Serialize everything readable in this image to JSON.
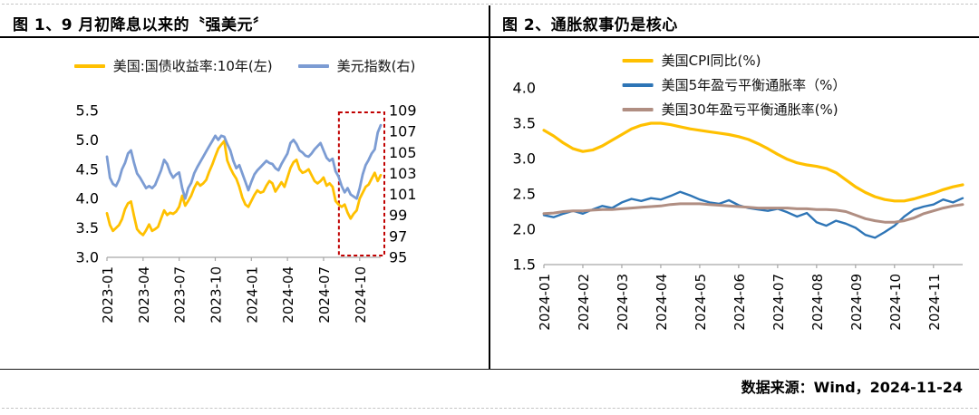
{
  "header": {
    "fig1_title": "图 1、9 月初降息以来的〝强美元〞",
    "fig2_title": "图 2、通胀叙事仍是核心"
  },
  "footer": {
    "source": "数据来源：Wind，2024-11-24"
  },
  "colors": {
    "gold": "#FFC000",
    "light_blue": "#7C9CD3",
    "dark_blue": "#2E75B6",
    "brown": "#B08E82",
    "highlight_red": "#C00000",
    "axis_gray": "#A6A6A6"
  },
  "chart_data": [
    {
      "type": "line",
      "title": "图 1、9 月初降息以来的〝强美元〞",
      "xlabel": "",
      "ylabel_left": "",
      "ylabel_right": "",
      "legend_position": "top-center-horizontal",
      "grid": false,
      "left_axis": {
        "min": 3.0,
        "max": 5.5,
        "ticks": [
          {
            "v": 3.0,
            "label": "3.0"
          },
          {
            "v": 3.5,
            "label": "3.5"
          },
          {
            "v": 4.0,
            "label": "4.0"
          },
          {
            "v": 4.5,
            "label": "4.5"
          },
          {
            "v": 5.0,
            "label": "5.0"
          },
          {
            "v": 5.5,
            "label": "5.5"
          }
        ]
      },
      "right_axis": {
        "min": 95,
        "max": 109,
        "ticks": [
          {
            "v": 95,
            "label": "95"
          },
          {
            "v": 97,
            "label": "97"
          },
          {
            "v": 99,
            "label": "99"
          },
          {
            "v": 101,
            "label": "101"
          },
          {
            "v": 103,
            "label": "103"
          },
          {
            "v": 105,
            "label": "105"
          },
          {
            "v": 107,
            "label": "107"
          },
          {
            "v": 109,
            "label": "109"
          }
        ]
      },
      "x_ticks": [
        {
          "label": "2023-01",
          "index": 0
        },
        {
          "label": "2023-04",
          "index": 12
        },
        {
          "label": "2023-07",
          "index": 24
        },
        {
          "label": "2023-10",
          "index": 36
        },
        {
          "label": "2024-01",
          "index": 48
        },
        {
          "label": "2024-04",
          "index": 60
        },
        {
          "label": "2024-07",
          "index": 72
        },
        {
          "label": "2024-10",
          "index": 84
        }
      ],
      "highlight": {
        "start_index": 78,
        "end_index": 91,
        "color": "#C00000"
      },
      "series": [
        {
          "name": "美国:国债收益率:10年(左)",
          "axis": "left",
          "color": "#FFC000",
          "width": 2.8,
          "values": [
            3.75,
            3.55,
            3.45,
            3.5,
            3.55,
            3.65,
            3.82,
            3.92,
            3.95,
            3.7,
            3.48,
            3.42,
            3.38,
            3.46,
            3.56,
            3.45,
            3.48,
            3.52,
            3.66,
            3.8,
            3.72,
            3.76,
            3.74,
            3.78,
            3.86,
            4.05,
            3.88,
            3.96,
            4.05,
            4.18,
            4.28,
            4.22,
            4.26,
            4.32,
            4.46,
            4.58,
            4.72,
            4.85,
            4.92,
            4.98,
            4.65,
            4.52,
            4.42,
            4.34,
            4.2,
            4.02,
            3.9,
            3.86,
            3.96,
            4.06,
            4.14,
            4.1,
            4.12,
            4.22,
            4.3,
            4.26,
            4.12,
            4.2,
            4.28,
            4.2,
            4.36,
            4.52,
            4.62,
            4.66,
            4.5,
            4.44,
            4.46,
            4.5,
            4.4,
            4.3,
            4.26,
            4.3,
            4.36,
            4.22,
            4.26,
            4.2,
            3.96,
            3.9,
            3.86,
            3.9,
            3.76,
            3.66,
            3.74,
            3.8,
            4.0,
            4.1,
            4.2,
            4.24,
            4.34,
            4.44,
            4.3,
            4.4
          ]
        },
        {
          "name": "美元指数(右)",
          "axis": "right",
          "color": "#7C9CD3",
          "width": 2.8,
          "values": [
            104.6,
            102.6,
            102.0,
            101.8,
            102.4,
            103.4,
            104.0,
            104.9,
            105.2,
            104.0,
            103.0,
            102.6,
            102.1,
            101.6,
            101.8,
            101.6,
            101.9,
            102.6,
            103.3,
            104.3,
            103.9,
            103.1,
            102.6,
            102.9,
            103.1,
            101.6,
            100.6,
            101.6,
            102.1,
            103.0,
            103.6,
            104.1,
            104.6,
            105.1,
            105.6,
            106.1,
            106.6,
            106.2,
            106.6,
            106.5,
            105.8,
            105.2,
            104.2,
            103.5,
            103.8,
            103.0,
            102.2,
            101.4,
            102.2,
            102.9,
            103.3,
            103.6,
            103.9,
            104.2,
            104.0,
            103.9,
            103.5,
            103.3,
            103.9,
            104.4,
            104.9,
            105.9,
            106.2,
            105.8,
            105.2,
            105.0,
            104.7,
            104.6,
            104.9,
            105.3,
            105.6,
            105.9,
            105.2,
            104.5,
            104.2,
            104.4,
            103.2,
            102.7,
            101.8,
            101.2,
            101.6,
            101.0,
            100.8,
            100.6,
            101.6,
            102.9,
            103.8,
            104.3,
            104.9,
            105.3,
            106.9,
            107.6
          ]
        }
      ]
    },
    {
      "type": "line",
      "title": "图 2、通胀叙事仍是核心",
      "xlabel": "",
      "ylabel_left": "",
      "legend_position": "top-center-vertical",
      "grid": false,
      "left_axis": {
        "min": 1.5,
        "max": 4.0,
        "ticks": [
          {
            "v": 1.5,
            "label": "1.5"
          },
          {
            "v": 2.0,
            "label": "2.0"
          },
          {
            "v": 2.5,
            "label": "2.5"
          },
          {
            "v": 3.0,
            "label": "3.0"
          },
          {
            "v": 3.5,
            "label": "3.5"
          },
          {
            "v": 4.0,
            "label": "4.0"
          }
        ]
      },
      "x_ticks": [
        {
          "label": "2024-01",
          "index": 0
        },
        {
          "label": "2024-02",
          "index": 4
        },
        {
          "label": "2024-03",
          "index": 8
        },
        {
          "label": "2024-04",
          "index": 12
        },
        {
          "label": "2024-05",
          "index": 16
        },
        {
          "label": "2024-06",
          "index": 20
        },
        {
          "label": "2024-07",
          "index": 24
        },
        {
          "label": "2024-08",
          "index": 28
        },
        {
          "label": "2024-09",
          "index": 32
        },
        {
          "label": "2024-10",
          "index": 36
        },
        {
          "label": "2024-11",
          "index": 40
        }
      ],
      "series": [
        {
          "name": "美国CPI同比(%)",
          "axis": "left",
          "color": "#FFC000",
          "width": 3.2,
          "values": [
            3.4,
            3.32,
            3.22,
            3.14,
            3.1,
            3.12,
            3.18,
            3.26,
            3.34,
            3.42,
            3.47,
            3.5,
            3.5,
            3.48,
            3.45,
            3.42,
            3.4,
            3.38,
            3.36,
            3.34,
            3.31,
            3.27,
            3.21,
            3.14,
            3.06,
            2.99,
            2.94,
            2.91,
            2.89,
            2.86,
            2.8,
            2.7,
            2.6,
            2.52,
            2.46,
            2.42,
            2.4,
            2.4,
            2.43,
            2.47,
            2.51,
            2.56,
            2.6,
            2.63
          ]
        },
        {
          "name": "美国5年盈亏平衡通胀率（%）",
          "axis": "left",
          "color": "#2E75B6",
          "width": 2.4,
          "values": [
            2.2,
            2.17,
            2.22,
            2.26,
            2.22,
            2.28,
            2.33,
            2.3,
            2.38,
            2.43,
            2.4,
            2.44,
            2.42,
            2.47,
            2.53,
            2.48,
            2.42,
            2.38,
            2.36,
            2.41,
            2.34,
            2.3,
            2.28,
            2.26,
            2.29,
            2.24,
            2.18,
            2.23,
            2.1,
            2.05,
            2.12,
            2.08,
            2.02,
            1.92,
            1.88,
            1.96,
            2.05,
            2.18,
            2.28,
            2.32,
            2.35,
            2.42,
            2.38,
            2.44
          ]
        },
        {
          "name": "美国30年盈亏平衡通胀率(%)",
          "axis": "left",
          "color": "#B08E82",
          "width": 3.0,
          "values": [
            2.22,
            2.23,
            2.25,
            2.26,
            2.26,
            2.27,
            2.28,
            2.28,
            2.29,
            2.3,
            2.31,
            2.32,
            2.33,
            2.35,
            2.36,
            2.36,
            2.36,
            2.35,
            2.34,
            2.33,
            2.32,
            2.31,
            2.3,
            2.3,
            2.3,
            2.3,
            2.29,
            2.29,
            2.28,
            2.28,
            2.27,
            2.25,
            2.2,
            2.15,
            2.12,
            2.1,
            2.1,
            2.12,
            2.16,
            2.22,
            2.26,
            2.3,
            2.33,
            2.35
          ]
        }
      ]
    }
  ]
}
